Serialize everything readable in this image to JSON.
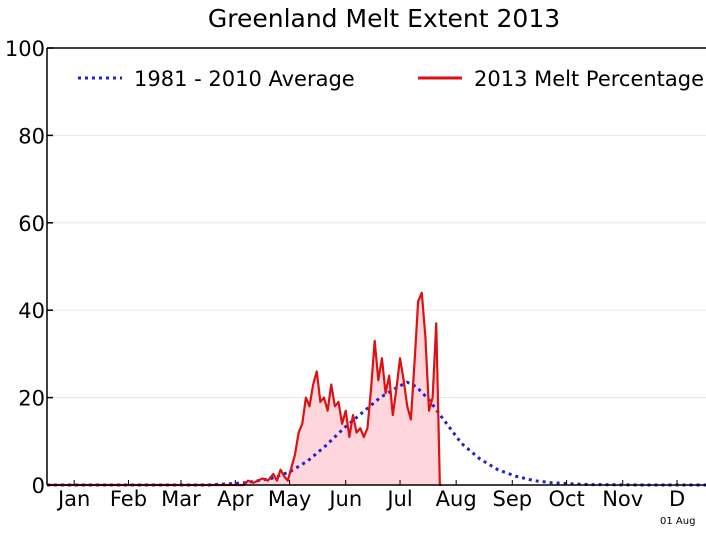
{
  "chart_data": {
    "type": "area",
    "title": "Greenland Melt Extent 2013",
    "xlabel": "",
    "ylabel": "",
    "xlim": [
      1,
      365
    ],
    "ylim": [
      0,
      100
    ],
    "y_ticks": [
      0,
      20,
      40,
      60,
      80,
      100
    ],
    "x_ticks": [
      {
        "label": "Jan",
        "day": 16
      },
      {
        "label": "Feb",
        "day": 46
      },
      {
        "label": "Mar",
        "day": 75
      },
      {
        "label": "Apr",
        "day": 105
      },
      {
        "label": "May",
        "day": 135
      },
      {
        "label": "Jun",
        "day": 166
      },
      {
        "label": "Jul",
        "day": 196
      },
      {
        "label": "Aug",
        "day": 227
      },
      {
        "label": "Sep",
        "day": 258
      },
      {
        "label": "Oct",
        "day": 288
      },
      {
        "label": "Nov",
        "day": 319
      },
      {
        "label": "D",
        "day": 349
      }
    ],
    "grid": true,
    "legend_position": "top",
    "series": [
      {
        "name": "1981 - 2010 Average",
        "style": "dotted",
        "color": "#2222cc",
        "x": [
          1,
          90,
          110,
          125,
          135,
          145,
          155,
          165,
          175,
          185,
          195,
          200,
          205,
          212,
          220,
          230,
          240,
          250,
          260,
          270,
          280,
          300,
          330,
          365
        ],
        "y": [
          0,
          0,
          0.5,
          1.5,
          3,
          5.5,
          9,
          13,
          16.5,
          20,
          22.5,
          23.5,
          22.5,
          19.5,
          15,
          9.5,
          6,
          3.5,
          2,
          1,
          0.5,
          0.1,
          0,
          0
        ]
      },
      {
        "name": "2013 Melt Percentage",
        "style": "solid",
        "color": "#dd1111",
        "fill": "#ffd6dc",
        "x": [
          1,
          110,
          112,
          115,
          120,
          123,
          126,
          128,
          130,
          132,
          134,
          136,
          138,
          140,
          142,
          144,
          146,
          148,
          150,
          152,
          154,
          156,
          158,
          160,
          162,
          164,
          166,
          168,
          170,
          172,
          174,
          176,
          178,
          180,
          182,
          184,
          186,
          188,
          190,
          192,
          194,
          196,
          198,
          200,
          202,
          204,
          206,
          208,
          210,
          212,
          214,
          216,
          218,
          219
        ],
        "y": [
          0,
          0,
          1,
          0.5,
          1.5,
          1,
          2.5,
          1,
          3.5,
          2,
          1,
          4,
          7,
          12,
          14,
          20,
          18,
          23,
          26,
          19,
          20,
          17,
          23,
          18,
          19,
          14,
          17,
          11,
          16,
          12,
          13,
          11,
          13,
          22,
          33,
          24,
          29,
          21,
          25,
          16,
          22,
          29,
          24,
          18,
          15,
          28,
          42,
          44,
          34,
          17,
          20,
          37,
          0,
          0
        ]
      }
    ],
    "footnote": "01 Aug"
  }
}
